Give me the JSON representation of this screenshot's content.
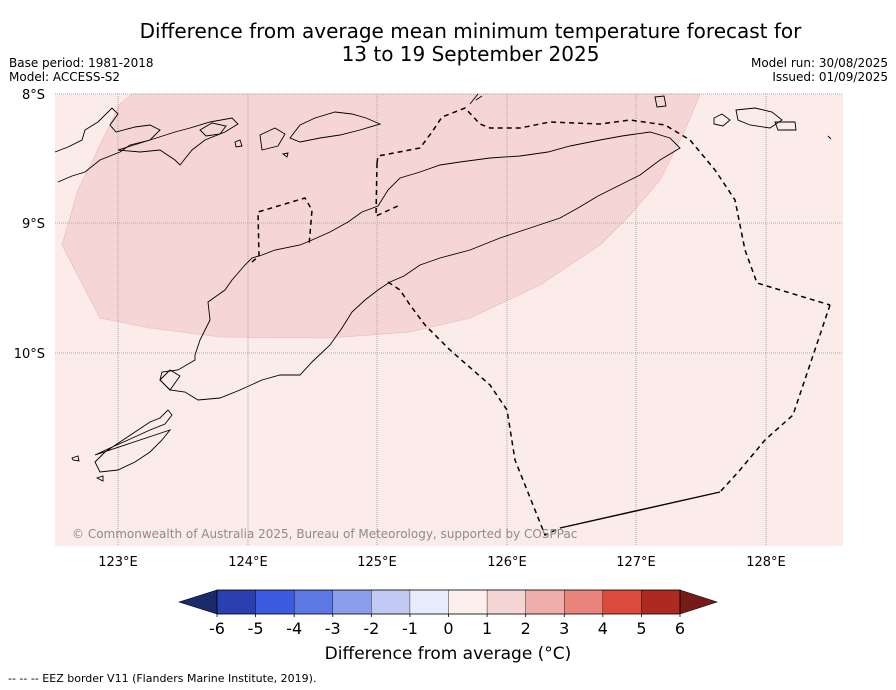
{
  "title_line1": "Difference from average mean minimum temperature forecast for",
  "title_line2": "13 to 19 September 2025",
  "meta_left": {
    "base_period": "Base period: 1981-2018",
    "model": "Model: ACCESS-S2"
  },
  "meta_right": {
    "model_run": "Model run: 30/08/2025",
    "issued": "Issued: 01/09/2025"
  },
  "lat_labels": [
    "8°S",
    "9°S",
    "10°S"
  ],
  "lon_labels": [
    "123°E",
    "124°E",
    "125°E",
    "126°E",
    "127°E",
    "128°E"
  ],
  "copyright": "© Commonwealth of Australia 2025, Bureau of Meteorology, supported by COSPPac",
  "colorbar": {
    "title": "Difference from average (°C)",
    "ticks": [
      "-6",
      "-5",
      "-4",
      "-3",
      "-2",
      "-1",
      "0",
      "1",
      "2",
      "3",
      "4",
      "5",
      "6"
    ],
    "colors": {
      "under": "#1b2a6b",
      "bins": [
        "#2a3fb0",
        "#3b5ae0",
        "#5d78e3",
        "#8a9eeb",
        "#c2caf4",
        "#e9ecfb",
        "#fcefee",
        "#f6d6d5",
        "#efaea9",
        "#e8847c",
        "#dc4a3c",
        "#ac2a20"
      ],
      "over": "#771b19"
    }
  },
  "fields": {
    "base_color": "#fbebe9",
    "warm_color": "#f6d6d5"
  },
  "footnote": "--  --  -- EEZ border V11 (Flanders Marine Institute, 2019)."
}
